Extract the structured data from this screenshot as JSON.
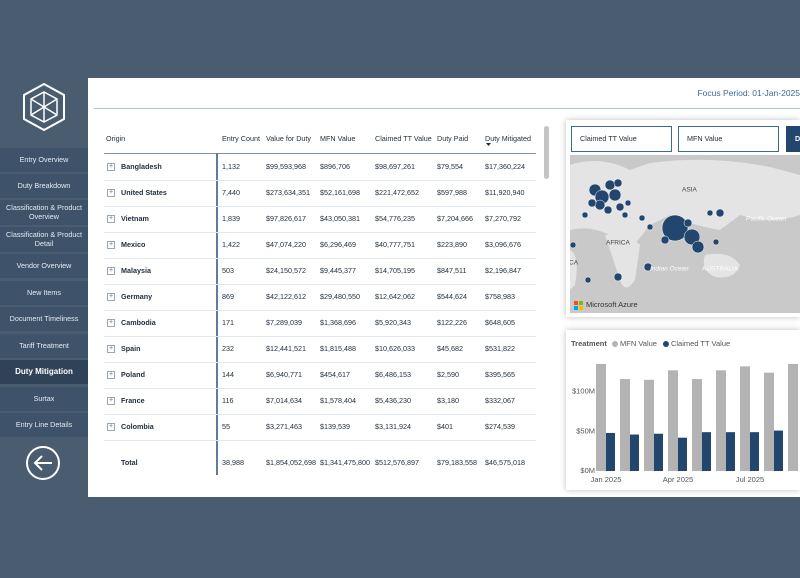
{
  "sidebar": {
    "nav": [
      "Entry Overview",
      "Duty Breakdown",
      "Classification & Product Overview",
      "Classification & Product Detail",
      "Vendor Overview",
      "New Items",
      "Document Timeliness",
      "Tariff Treatment",
      "Duty Mitigation",
      "Surtax",
      "Entry Line Details"
    ],
    "active_index": 8
  },
  "header": {
    "focus_period": "Focus Period: 01-Jan-2025"
  },
  "table": {
    "columns": [
      "Origin",
      "Entry Count",
      "Value for Duty",
      "MFN Value",
      "Claimed TT Value",
      "Duty Paid",
      "Duty Mitigated"
    ],
    "rows": [
      [
        "Bangladesh",
        "1,132",
        "$99,593,968",
        "$896,706",
        "$98,697,261",
        "$79,554",
        "$17,360,224"
      ],
      [
        "United States",
        "7,440",
        "$273,634,351",
        "$52,161,698",
        "$221,472,652",
        "$597,988",
        "$11,920,940"
      ],
      [
        "Vietnam",
        "1,839",
        "$97,826,617",
        "$43,050,381",
        "$54,776,235",
        "$7,204,666",
        "$7,270,792"
      ],
      [
        "Mexico",
        "1,422",
        "$47,074,220",
        "$6,296,469",
        "$40,777,751",
        "$223,890",
        "$3,096,676"
      ],
      [
        "Malaysia",
        "503",
        "$24,150,572",
        "$9,445,377",
        "$14,705,195",
        "$847,511",
        "$2,196,847"
      ],
      [
        "Germany",
        "869",
        "$42,122,612",
        "$29,480,550",
        "$12,642,062",
        "$544,624",
        "$758,983"
      ],
      [
        "Cambodia",
        "171",
        "$7,289,039",
        "$1,368,696",
        "$5,920,343",
        "$122,226",
        "$648,605"
      ],
      [
        "Spain",
        "232",
        "$12,441,521",
        "$1,815,488",
        "$10,626,033",
        "$45,682",
        "$531,822"
      ],
      [
        "Poland",
        "144",
        "$6,940,771",
        "$454,617",
        "$6,486,153",
        "$2,590",
        "$395,565"
      ],
      [
        "France",
        "116",
        "$7,014,634",
        "$1,578,404",
        "$5,436,230",
        "$3,180",
        "$332,067"
      ],
      [
        "Colombia",
        "55",
        "$3,271,463",
        "$139,539",
        "$3,131,924",
        "$401",
        "$274,539"
      ]
    ],
    "total": [
      "Total",
      "38,988",
      "$1,854,052,698",
      "$1,341,475,800",
      "$512,576,897",
      "$79,183,558",
      "$46,575,018"
    ]
  },
  "filters": [
    "Claimed TT Value",
    "MFN Value",
    "D"
  ],
  "map": {
    "labels": [
      "ASIA",
      "AFRICA",
      "Indian Ocean",
      "AUSTRALIA",
      "Pacific Ocean",
      "CA"
    ],
    "attribution": "Microsoft Azure"
  },
  "chart_data": {
    "type": "bar",
    "legend_title": "Treatment",
    "categories": [
      "Jan 2025",
      null,
      null,
      "Apr 2025",
      null,
      null,
      "Jul 2025",
      null,
      null
    ],
    "series": [
      {
        "name": "MFN Value",
        "color": "#b3b3b3",
        "values": [
          135,
          116,
          115,
          127,
          116,
          127,
          132,
          124,
          135
        ]
      },
      {
        "name": "Claimed TT Value",
        "color": "#23466e",
        "values": [
          48,
          46,
          47,
          42,
          49,
          49,
          49,
          51,
          null
        ]
      }
    ],
    "ylim": [
      0,
      140
    ],
    "yticks": [
      {
        "value": 0,
        "label": "$0M"
      },
      {
        "value": 50,
        "label": "$50M"
      },
      {
        "value": 100,
        "label": "$100M"
      }
    ],
    "grid": false
  }
}
